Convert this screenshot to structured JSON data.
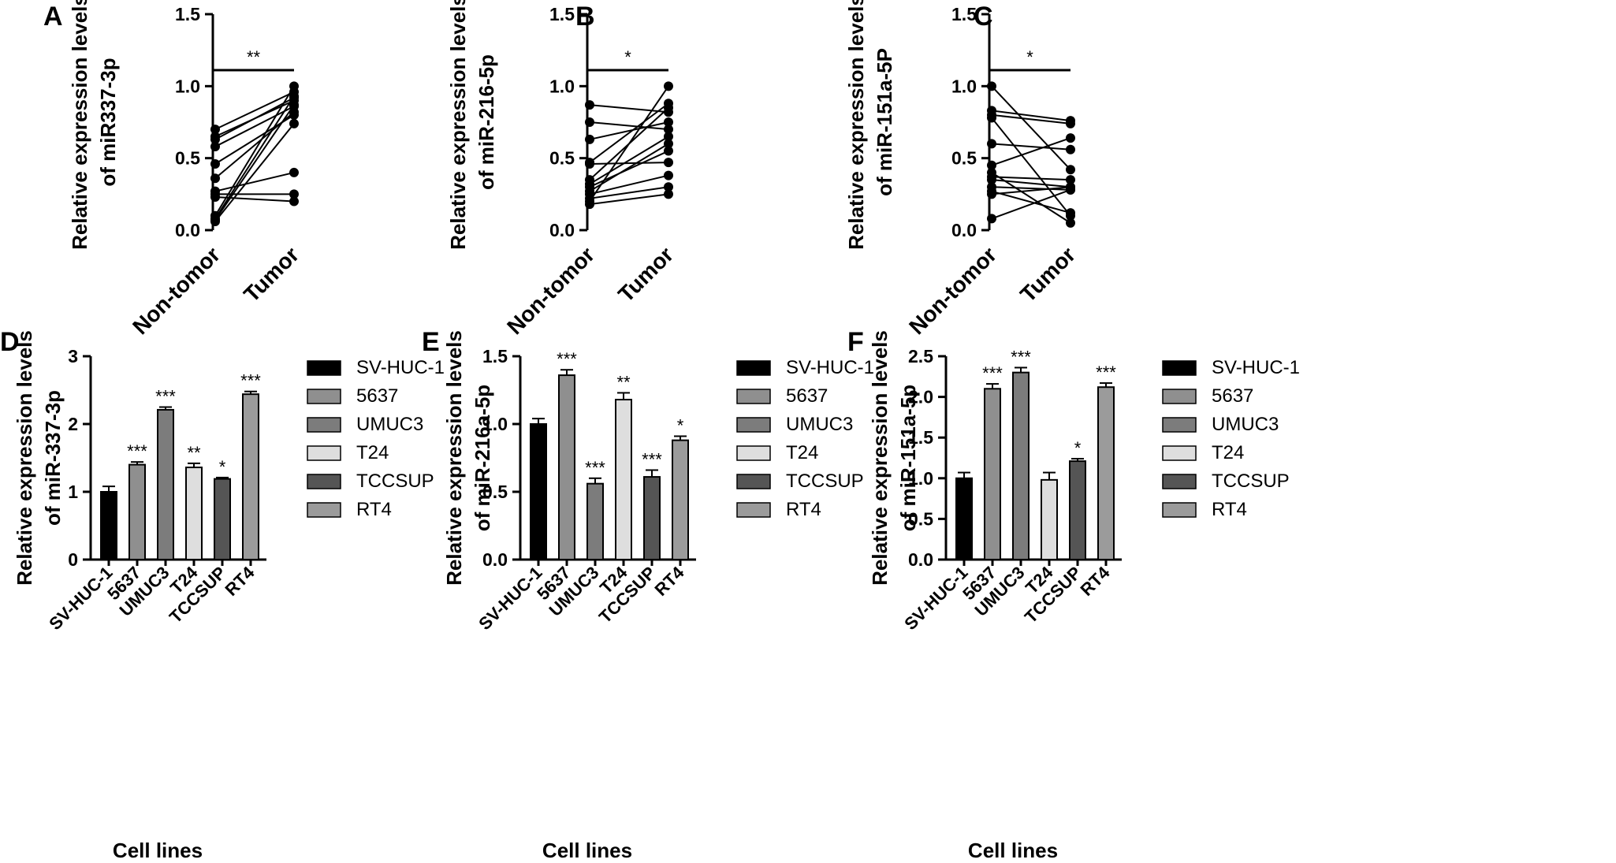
{
  "chart_data": [
    {
      "panel": "A",
      "type": "paired-scatter",
      "categories": [
        "Non-tomor",
        "Tumor"
      ],
      "ylabel": [
        "Relative expression levels",
        "of miR337-3p"
      ],
      "ylim": [
        0,
        1.5
      ],
      "yticks": [
        "0.0",
        "0.5",
        "1.0",
        "1.5"
      ],
      "significance": "**",
      "pairs": [
        [
          0.7,
          0.96
        ],
        [
          0.65,
          0.9
        ],
        [
          0.63,
          0.92
        ],
        [
          0.58,
          0.86
        ],
        [
          0.46,
          0.8
        ],
        [
          0.36,
          0.82
        ],
        [
          0.27,
          0.4
        ],
        [
          0.25,
          0.25
        ],
        [
          0.23,
          0.2
        ],
        [
          0.1,
          1.0
        ],
        [
          0.08,
          0.93
        ],
        [
          0.06,
          0.74
        ],
        [
          0.07,
          0.87
        ]
      ]
    },
    {
      "panel": "B",
      "type": "paired-scatter",
      "categories": [
        "Non-tomor",
        "Tumor"
      ],
      "ylabel": [
        "Relative expression levels",
        "of miR-216-5p"
      ],
      "ylim": [
        0,
        1.5
      ],
      "yticks": [
        "0.0",
        "0.5",
        "1.0",
        "1.5"
      ],
      "significance": "*",
      "pairs": [
        [
          0.87,
          0.82
        ],
        [
          0.75,
          0.7
        ],
        [
          0.63,
          0.75
        ],
        [
          0.47,
          0.88
        ],
        [
          0.46,
          0.47
        ],
        [
          0.35,
          0.85
        ],
        [
          0.32,
          0.65
        ],
        [
          0.3,
          0.55
        ],
        [
          0.27,
          0.6
        ],
        [
          0.25,
          0.38
        ],
        [
          0.22,
          0.3
        ],
        [
          0.2,
          1.0
        ],
        [
          0.18,
          0.25
        ]
      ]
    },
    {
      "panel": "C",
      "type": "paired-scatter",
      "categories": [
        "Non-tomor",
        "Tumor"
      ],
      "ylabel": [
        "Relative expression levels",
        "of miR-151a-5P"
      ],
      "ylim": [
        0,
        1.5
      ],
      "yticks": [
        "0.0",
        "0.5",
        "1.0",
        "1.5"
      ],
      "significance": "*",
      "pairs": [
        [
          1.0,
          0.42
        ],
        [
          0.83,
          0.76
        ],
        [
          0.8,
          0.74
        ],
        [
          0.78,
          0.1
        ],
        [
          0.6,
          0.56
        ],
        [
          0.45,
          0.64
        ],
        [
          0.4,
          0.05
        ],
        [
          0.37,
          0.35
        ],
        [
          0.35,
          0.3
        ],
        [
          0.3,
          0.28
        ],
        [
          0.27,
          0.12
        ],
        [
          0.25,
          0.3
        ],
        [
          0.08,
          0.28
        ]
      ]
    },
    {
      "panel": "D",
      "type": "bar",
      "categories": [
        "SV-HUC-1",
        "5637",
        "UMUC3",
        "T24",
        "TCCSUP",
        "RT4"
      ],
      "values": [
        1.0,
        1.4,
        2.21,
        1.36,
        1.19,
        2.44
      ],
      "errors": [
        0.08,
        0.04,
        0.04,
        0.06,
        0.02,
        0.04
      ],
      "significance": [
        "",
        "***",
        "***",
        "**",
        "*",
        "***"
      ],
      "xlabel": "Cell lines",
      "ylabel": [
        "Relative expression levels",
        "of miR-337-3p"
      ],
      "ylim": [
        0,
        3
      ],
      "yticks": [
        "0",
        "1",
        "2",
        "3"
      ]
    },
    {
      "panel": "E",
      "type": "bar",
      "categories": [
        "SV-HUC-1",
        "5637",
        "UMUC3",
        "T24",
        "TCCSUP",
        "RT4"
      ],
      "values": [
        1.0,
        1.36,
        0.56,
        1.18,
        0.61,
        0.88
      ],
      "errors": [
        0.04,
        0.04,
        0.04,
        0.05,
        0.05,
        0.03
      ],
      "significance": [
        "",
        "***",
        "***",
        "**",
        "***",
        "*"
      ],
      "xlabel": "Cell lines",
      "ylabel": [
        "Relative expression levels",
        "of miR-216a-5p"
      ],
      "ylim": [
        0,
        1.5
      ],
      "yticks": [
        "0.0",
        "0.5",
        "1.0",
        "1.5"
      ]
    },
    {
      "panel": "F",
      "type": "bar",
      "categories": [
        "SV-HUC-1",
        "5637",
        "UMUC3",
        "T24",
        "TCCSUP",
        "RT4"
      ],
      "values": [
        1.0,
        2.1,
        2.3,
        0.98,
        1.21,
        2.12
      ],
      "errors": [
        0.07,
        0.06,
        0.06,
        0.09,
        0.03,
        0.05
      ],
      "significance": [
        "",
        "***",
        "***",
        "",
        "*",
        "***"
      ],
      "xlabel": "Cell lines",
      "ylabel": [
        "Relative expression levels",
        "of miR-151a-5p"
      ],
      "ylim": [
        0,
        2.5
      ],
      "yticks": [
        "0.0",
        "0.5",
        "1.0",
        "1.5",
        "2.0",
        "2.5"
      ]
    }
  ],
  "legend": {
    "entries": [
      "SV-HUC-1",
      "5637",
      "UMUC3",
      "T24",
      "TCCSUP",
      "RT4"
    ],
    "colors": [
      "#000000",
      "#8f8f8f",
      "#7c7c7c",
      "#dedede",
      "#555555",
      "#9b9b9b"
    ]
  }
}
